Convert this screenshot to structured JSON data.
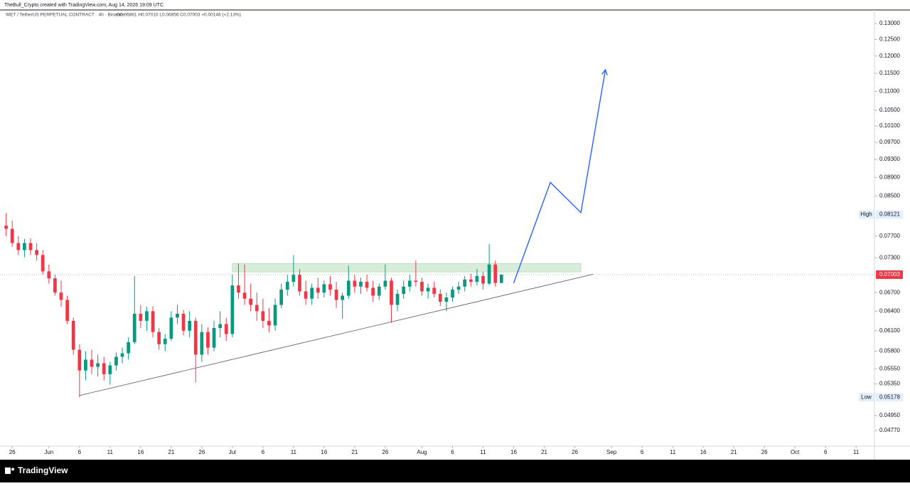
{
  "chart_data": {
    "type": "candlestick",
    "attribution": "TheBull_Crypto created with TradingView.com, Aug 14, 2026 19:09 UTC",
    "symbol": "WET / TetherUS PERPETUAL CONTRACT · 4h · Binance",
    "ohlc_legend": "O0.06861 H0.07010 L0.06856 C0.07003 +0.00146 (+2.13%)",
    "brand": "TradingView",
    "up_color": "#089981",
    "down_color": "#f23645",
    "log_scale": true,
    "grid": false,
    "x": [
      "May 25",
      "May 26",
      "May 27",
      "May 28",
      "May 29",
      "May 30",
      "May 31",
      "Jun 1",
      "Jun 2",
      "Jun 3",
      "Jun 4",
      "Jun 5",
      "Jun 6",
      "Jun 7",
      "Jun 8",
      "Jun 9",
      "Jun 10",
      "Jun 11",
      "Jun 12",
      "Jun 13",
      "Jun 14",
      "Jun 15",
      "Jun 16",
      "Jun 17",
      "Jun 18",
      "Jun 19",
      "Jun 20",
      "Jun 21",
      "Jun 22",
      "Jun 23",
      "Jun 24",
      "Jun 25",
      "Jun 26",
      "Jun 27",
      "Jun 28",
      "Jun 29",
      "Jun 30",
      "Jul 1",
      "Jul 2",
      "Jul 3",
      "Jul 4",
      "Jul 5",
      "Jul 6",
      "Jul 7",
      "Jul 8",
      "Jul 9",
      "Jul 10",
      "Jul 11",
      "Jul 12",
      "Jul 13",
      "Jul 14",
      "Jul 15",
      "Jul 16",
      "Jul 17",
      "Jul 18",
      "Jul 19",
      "Jul 20",
      "Jul 21",
      "Jul 22",
      "Jul 23",
      "Jul 24",
      "Jul 25",
      "Jul 26",
      "Jul 27",
      "Jul 28",
      "Jul 29",
      "Jul 30",
      "Jul 31",
      "Aug 1",
      "Aug 2",
      "Aug 3",
      "Aug 4",
      "Aug 5",
      "Aug 6",
      "Aug 7",
      "Aug 8",
      "Aug 9",
      "Aug 10",
      "Aug 11",
      "Aug 12",
      "Aug 13",
      "Aug 14"
    ],
    "open": [
      0.079,
      0.0784,
      0.0757,
      0.0744,
      0.0757,
      0.0744,
      0.0735,
      0.0706,
      0.0694,
      0.067,
      0.0658,
      0.0625,
      0.0582,
      0.0553,
      0.0568,
      0.0558,
      0.0563,
      0.0548,
      0.056,
      0.0572,
      0.0577,
      0.0593,
      0.0636,
      0.0625,
      0.064,
      0.0608,
      0.059,
      0.0598,
      0.063,
      0.0636,
      0.061,
      0.0625,
      0.0575,
      0.0608,
      0.0585,
      0.0614,
      0.062,
      0.0605,
      0.0682,
      0.067,
      0.066,
      0.065,
      0.064,
      0.0625,
      0.0618,
      0.065,
      0.0675,
      0.0688,
      0.07,
      0.0672,
      0.066,
      0.0678,
      0.067,
      0.0684,
      0.0675,
      0.0658,
      0.0665,
      0.069,
      0.068,
      0.0688,
      0.0678,
      0.0665,
      0.068,
      0.069,
      0.065,
      0.0668,
      0.068,
      0.069,
      0.0688,
      0.0672,
      0.0678,
      0.0668,
      0.0655,
      0.0662,
      0.0675,
      0.068,
      0.0692,
      0.0688,
      0.0698,
      0.0685,
      0.0718,
      0.06861
    ],
    "high": [
      0.0815,
      0.08,
      0.077,
      0.0765,
      0.0766,
      0.0757,
      0.0744,
      0.0718,
      0.07,
      0.069,
      0.0665,
      0.063,
      0.059,
      0.058,
      0.0582,
      0.0575,
      0.0572,
      0.0565,
      0.0578,
      0.0585,
      0.06,
      0.0698,
      0.065,
      0.0647,
      0.0648,
      0.0614,
      0.0605,
      0.064,
      0.065,
      0.0642,
      0.064,
      0.063,
      0.062,
      0.0615,
      0.0625,
      0.064,
      0.063,
      0.07,
      0.072,
      0.0718,
      0.0685,
      0.067,
      0.066,
      0.0645,
      0.066,
      0.0685,
      0.07,
      0.0735,
      0.071,
      0.069,
      0.0685,
      0.0695,
      0.069,
      0.0698,
      0.0688,
      0.067,
      0.0716,
      0.07,
      0.0695,
      0.07,
      0.069,
      0.0685,
      0.0718,
      0.0695,
      0.0675,
      0.069,
      0.07,
      0.0725,
      0.0695,
      0.0685,
      0.0688,
      0.0675,
      0.067,
      0.068,
      0.0688,
      0.0698,
      0.0702,
      0.071,
      0.0705,
      0.0755,
      0.0725,
      0.0701
    ],
    "low": [
      0.077,
      0.075,
      0.0735,
      0.0731,
      0.0735,
      0.0725,
      0.07,
      0.0685,
      0.0665,
      0.0647,
      0.062,
      0.0575,
      0.05178,
      0.054,
      0.0548,
      0.0545,
      0.054,
      0.0534,
      0.0553,
      0.0563,
      0.0568,
      0.059,
      0.0614,
      0.061,
      0.06,
      0.0582,
      0.058,
      0.0595,
      0.062,
      0.0603,
      0.06,
      0.0537,
      0.0565,
      0.0575,
      0.058,
      0.06,
      0.0595,
      0.06,
      0.066,
      0.065,
      0.064,
      0.0625,
      0.0614,
      0.0608,
      0.061,
      0.0645,
      0.0665,
      0.068,
      0.0665,
      0.065,
      0.065,
      0.066,
      0.0662,
      0.0665,
      0.0645,
      0.0628,
      0.066,
      0.067,
      0.0668,
      0.0672,
      0.0655,
      0.0658,
      0.0675,
      0.0622,
      0.064,
      0.066,
      0.0672,
      0.068,
      0.0665,
      0.066,
      0.0662,
      0.0648,
      0.064,
      0.0655,
      0.0668,
      0.0672,
      0.068,
      0.0682,
      0.0675,
      0.0682,
      0.068,
      0.06856
    ],
    "close": [
      0.0784,
      0.0757,
      0.0744,
      0.0757,
      0.0744,
      0.0735,
      0.0706,
      0.0694,
      0.067,
      0.0658,
      0.0625,
      0.0582,
      0.0553,
      0.0568,
      0.0558,
      0.0563,
      0.0548,
      0.056,
      0.0572,
      0.0577,
      0.0593,
      0.0636,
      0.0625,
      0.064,
      0.0608,
      0.059,
      0.0598,
      0.063,
      0.0636,
      0.061,
      0.0625,
      0.0575,
      0.0608,
      0.0585,
      0.0614,
      0.062,
      0.0605,
      0.0682,
      0.067,
      0.066,
      0.065,
      0.064,
      0.0625,
      0.0618,
      0.065,
      0.0675,
      0.0688,
      0.07,
      0.0672,
      0.066,
      0.0678,
      0.067,
      0.0684,
      0.0675,
      0.0658,
      0.0665,
      0.069,
      0.068,
      0.0688,
      0.0678,
      0.0665,
      0.068,
      0.069,
      0.065,
      0.0668,
      0.068,
      0.069,
      0.0688,
      0.0672,
      0.0678,
      0.0668,
      0.0655,
      0.0662,
      0.0675,
      0.068,
      0.0692,
      0.0688,
      0.0698,
      0.0685,
      0.0718,
      0.0686,
      0.07003
    ],
    "xlim": [
      "May 24",
      "Oct 14"
    ],
    "xticks": [
      {
        "value": "May 26",
        "label": "26"
      },
      {
        "value": "Jun 1",
        "label": "Jun"
      },
      {
        "value": "Jun 6",
        "label": "6"
      },
      {
        "value": "Jun 11",
        "label": "11"
      },
      {
        "value": "Jun 16",
        "label": "16"
      },
      {
        "value": "Jun 21",
        "label": "21"
      },
      {
        "value": "Jun 26",
        "label": "26"
      },
      {
        "value": "Jul 1",
        "label": "Jul"
      },
      {
        "value": "Jul 6",
        "label": "6"
      },
      {
        "value": "Jul 11",
        "label": "11"
      },
      {
        "value": "Jul 16",
        "label": "16"
      },
      {
        "value": "Jul 21",
        "label": "21"
      },
      {
        "value": "Jul 26",
        "label": "26"
      },
      {
        "value": "Aug 1",
        "label": "Aug"
      },
      {
        "value": "Aug 6",
        "label": "6"
      },
      {
        "value": "Aug 11",
        "label": "11"
      },
      {
        "value": "Aug 16",
        "label": "16"
      },
      {
        "value": "Aug 21",
        "label": "21"
      },
      {
        "value": "Aug 26",
        "label": "26"
      },
      {
        "value": "Sep 1",
        "label": "Sep"
      },
      {
        "value": "Sep 6",
        "label": "6"
      },
      {
        "value": "Sep 11",
        "label": "11"
      },
      {
        "value": "Sep 16",
        "label": "16"
      },
      {
        "value": "Sep 21",
        "label": "21"
      },
      {
        "value": "Sep 26",
        "label": "26"
      },
      {
        "value": "Oct 1",
        "label": "Oct"
      },
      {
        "value": "Oct 6",
        "label": "6"
      },
      {
        "value": "Oct 11",
        "label": "11"
      }
    ],
    "ylim": [
      0.0459,
      0.1344
    ],
    "yticks": [
      {
        "value": 0.13,
        "label": "0.13000"
      },
      {
        "value": 0.125,
        "label": "0.12500"
      },
      {
        "value": 0.12,
        "label": "0.12000"
      },
      {
        "value": 0.115,
        "label": "0.11500"
      },
      {
        "value": 0.11,
        "label": "0.11000"
      },
      {
        "value": 0.105,
        "label": "0.10500"
      },
      {
        "value": 0.101,
        "label": "0.10100"
      },
      {
        "value": 0.097,
        "label": "0.09700"
      },
      {
        "value": 0.093,
        "label": "0.09300"
      },
      {
        "value": 0.089,
        "label": "0.08900"
      },
      {
        "value": 0.085,
        "label": "0.08500"
      },
      {
        "value": 0.077,
        "label": "0.07700"
      },
      {
        "value": 0.073,
        "label": "0.07300"
      },
      {
        "value": 0.067,
        "label": "0.06700"
      },
      {
        "value": 0.064,
        "label": "0.06400"
      },
      {
        "value": 0.061,
        "label": "0.06100"
      },
      {
        "value": 0.058,
        "label": "0.05800"
      },
      {
        "value": 0.0555,
        "label": "0.05550"
      },
      {
        "value": 0.0535,
        "label": "0.05350"
      },
      {
        "value": 0.0495,
        "label": "0.04950"
      },
      {
        "value": 0.0477,
        "label": "0.04770"
      }
    ],
    "price_markers": [
      {
        "name": "High",
        "value": 0.08121
      },
      {
        "name": "Low",
        "value": 0.05178
      }
    ],
    "last_price": {
      "value": 0.07003,
      "color": "#f23645"
    },
    "zone": {
      "x": [
        "Jul 1",
        "Aug 27"
      ],
      "y": [
        0.0705,
        0.072
      ],
      "color": "#c8e6c9"
    },
    "trendline": {
      "x": [
        "Jun 6",
        "Aug 29"
      ],
      "y": [
        0.052,
        0.0701
      ],
      "color": "#555555"
    },
    "projection": {
      "x": [
        "Aug 16",
        "Aug 22",
        "Aug 27",
        "Aug 31"
      ],
      "y": [
        0.0686,
        0.0879,
        0.0816,
        0.116
      ],
      "color": "#2962ff"
    }
  }
}
